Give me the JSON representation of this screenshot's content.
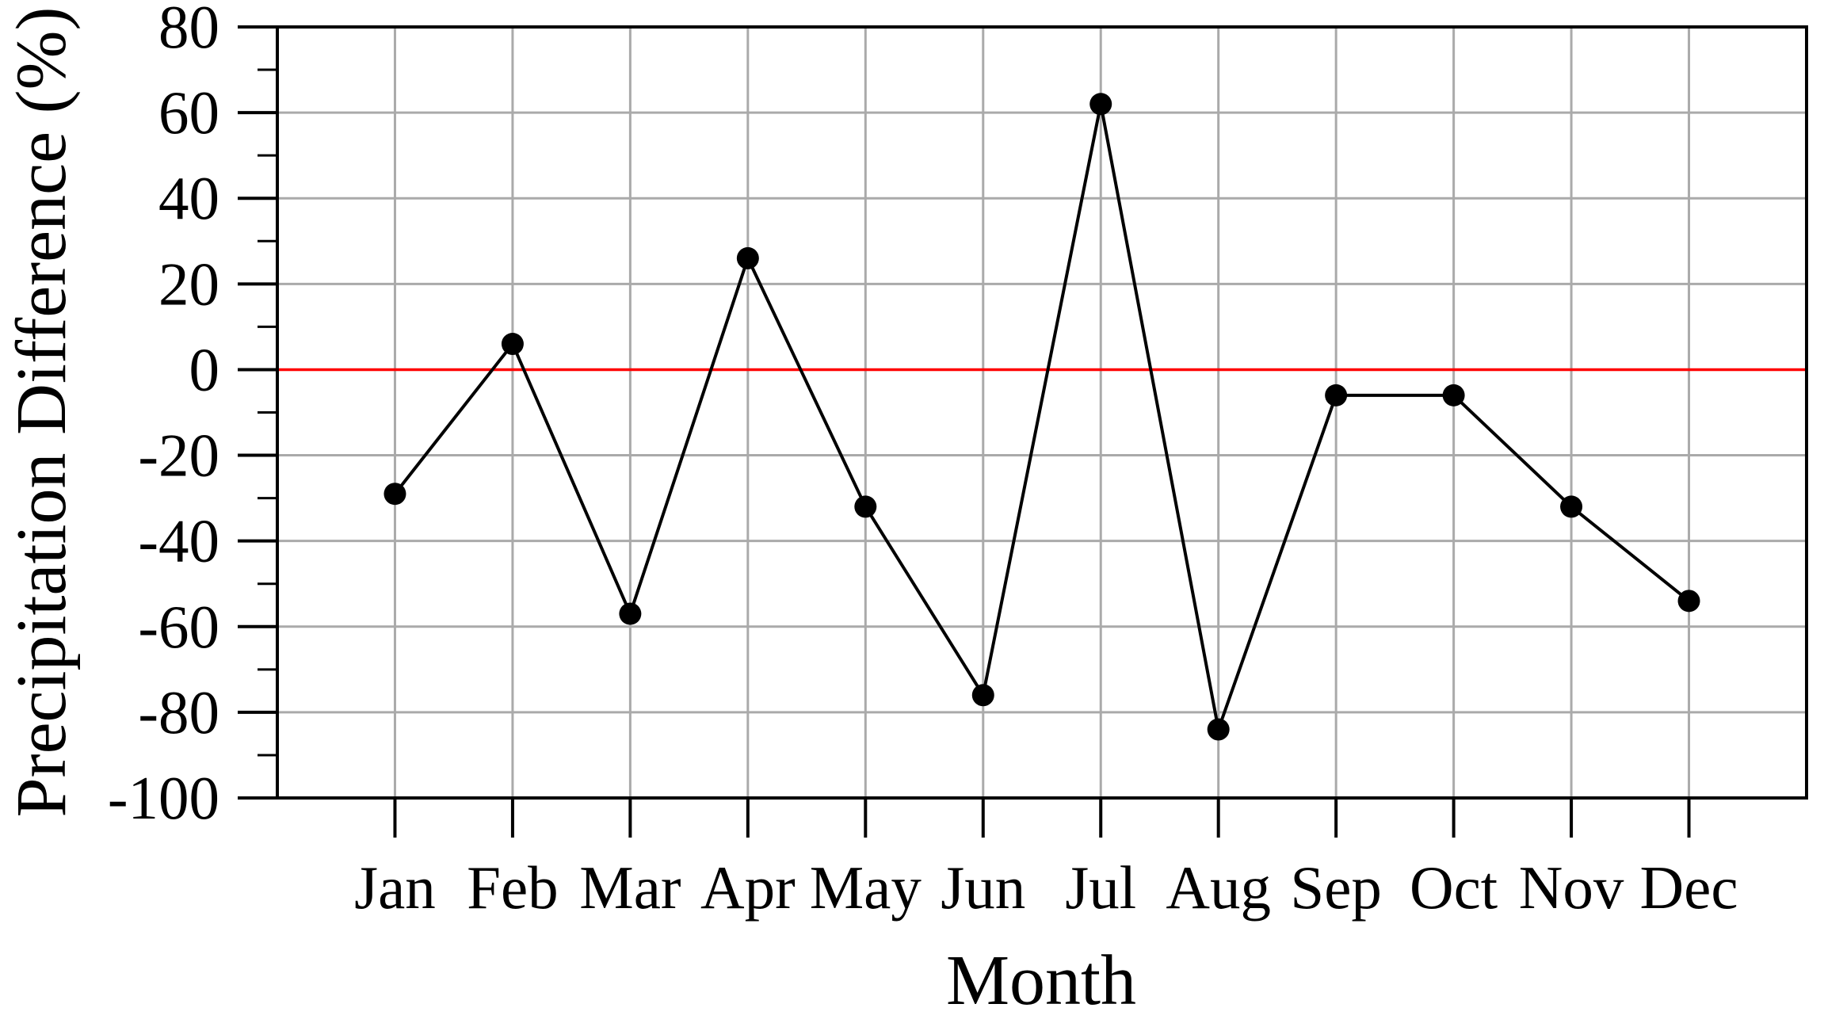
{
  "chart_data": {
    "type": "line",
    "title": "",
    "xlabel": "Month",
    "ylabel": "Precipitation Difference (%)",
    "categories": [
      "Jan",
      "Feb",
      "Mar",
      "Apr",
      "May",
      "Jun",
      "Jul",
      "Aug",
      "Sep",
      "Oct",
      "Nov",
      "Dec"
    ],
    "series": [
      {
        "values": [
          -29,
          6,
          -57,
          26,
          -32,
          -76,
          62,
          -84,
          -6,
          -6,
          -32,
          -54
        ]
      }
    ],
    "ylim": [
      -100,
      80
    ],
    "ytick_step": 20,
    "yminor_step": 10,
    "ytick_labels": [
      "80",
      "60",
      "40",
      "20",
      "0",
      "-20",
      "-40",
      "-60",
      "-80",
      "-100"
    ],
    "zero_reference_line": 0,
    "grid": true,
    "legend": false,
    "marker": "circle"
  },
  "colors": {
    "background": "#ffffff",
    "axis": "#000000",
    "grid": "#aaaaaa",
    "zero_line": "#ff0000",
    "data_line": "#000000",
    "marker_fill": "#000000",
    "text": "#000000"
  }
}
